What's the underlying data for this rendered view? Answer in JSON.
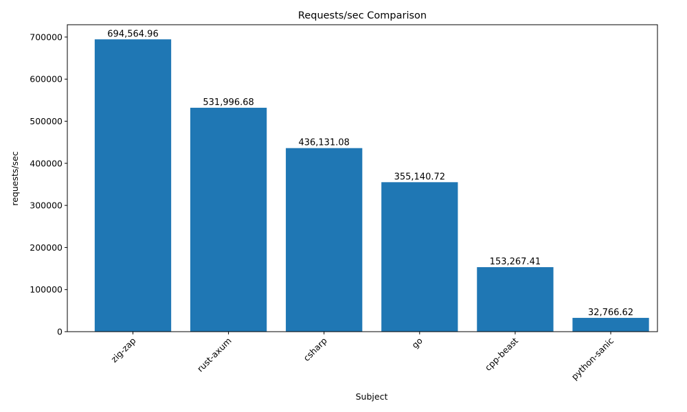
{
  "chart_data": {
    "type": "bar",
    "title": "Requests/sec Comparison",
    "xlabel": "Subject",
    "ylabel": "requests/sec",
    "categories": [
      "zig-zap",
      "rust-axum",
      "csharp",
      "go",
      "cpp-beast",
      "python-sanic"
    ],
    "values": [
      694564.96,
      531996.68,
      436131.08,
      355140.72,
      153267.41,
      32766.62
    ],
    "data_labels": [
      "694,564.96",
      "531,996.68",
      "436,131.08",
      "355,140.72",
      "153,267.41",
      "32,766.62"
    ],
    "ylim": [
      0,
      729293
    ],
    "yticks": [
      0,
      100000,
      200000,
      300000,
      400000,
      500000,
      600000,
      700000
    ],
    "ytick_labels": [
      "0",
      "100000",
      "200000",
      "300000",
      "400000",
      "500000",
      "600000",
      "700000"
    ],
    "xtick_rotation": 45,
    "grid": false,
    "bar_color": "#1f77b4"
  }
}
